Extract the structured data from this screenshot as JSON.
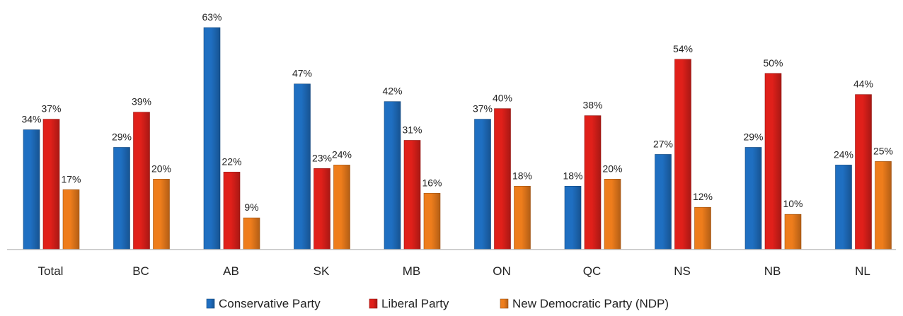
{
  "chart_data": {
    "type": "bar",
    "title": "",
    "xlabel": "",
    "ylabel": "",
    "ylim": [
      0,
      65
    ],
    "grid": false,
    "legend_position": "bottom",
    "categories": [
      "Total",
      "BC",
      "AB",
      "SK",
      "MB",
      "ON",
      "QC",
      "NS",
      "NB",
      "NL"
    ],
    "series": [
      {
        "name": "Conservative Party",
        "color": "#1f6fc1",
        "values": [
          34,
          29,
          63,
          47,
          42,
          37,
          18,
          27,
          29,
          24
        ]
      },
      {
        "name": "Liberal Party",
        "color": "#e0201a",
        "values": [
          37,
          39,
          22,
          23,
          31,
          40,
          38,
          54,
          50,
          44
        ]
      },
      {
        "name": "New Democratic Party (NDP)",
        "color": "#ee7d1c",
        "values": [
          17,
          20,
          9,
          24,
          16,
          18,
          20,
          12,
          10,
          25
        ]
      }
    ],
    "value_suffix": "%"
  }
}
